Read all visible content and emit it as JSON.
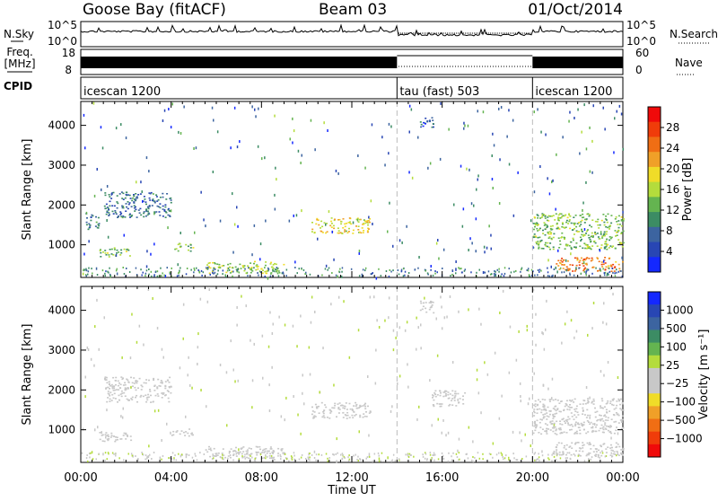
{
  "header": {
    "station": "Goose Bay (fitACF)",
    "beam": "Beam 03",
    "date": "01/Oct/2014"
  },
  "status_panel": {
    "nsky_label": "N.Sky",
    "nsky_top_tick": "10^5",
    "nsky_bottom_tick": "10^0",
    "nsearch_label": "N.Search",
    "nsearch_top_tick": "10^5",
    "nsearch_bottom_tick": "10^0",
    "freq_label_line1": "Freq.",
    "freq_label_line2": "[MHz]",
    "freq_top_tick": "18",
    "freq_bottom_tick": "8",
    "nave_label": "Nave",
    "nave_top_tick": "60",
    "nave_bottom_tick": "0",
    "cpid_label": "CPID",
    "cpid_segments": [
      {
        "label": "icescan 1200",
        "start_hour": 0,
        "end_hour": 14
      },
      {
        "label": "tau (fast) 503",
        "start_hour": 14,
        "end_hour": 20
      },
      {
        "label": "icescan 1200",
        "start_hour": 20,
        "end_hour": 24
      }
    ]
  },
  "chart_data": [
    {
      "type": "heatmap",
      "panel": "power",
      "ylabel": "Slant Range [km]",
      "ylim": [
        180,
        4600
      ],
      "yticks": [
        1000,
        2000,
        3000,
        4000
      ],
      "xlim": [
        0,
        24
      ],
      "colorbar": {
        "label": "Power [dB]",
        "range": [
          0,
          32
        ],
        "ticks": [
          "4",
          "8",
          "12",
          "16",
          "20",
          "24",
          "28"
        ],
        "colors": [
          "#1428ff",
          "#2846b4",
          "#3c64a0",
          "#3c8c64",
          "#64b450",
          "#b4dc3c",
          "#f0dc28",
          "#f0a028",
          "#f06e14",
          "#f03c0a",
          "#f00a0a"
        ]
      },
      "echo_bands": [
        {
          "start_hour": 0.2,
          "end_hour": 0.8,
          "range_low": 1400,
          "range_high": 1800,
          "value": 8
        },
        {
          "start_hour": 0.8,
          "end_hour": 2.2,
          "range_low": 700,
          "range_high": 950,
          "value": 14
        },
        {
          "start_hour": 1.0,
          "end_hour": 4.0,
          "range_low": 1700,
          "range_high": 2350,
          "value": 8
        },
        {
          "start_hour": 4.0,
          "end_hour": 5.0,
          "range_low": 850,
          "range_high": 1050,
          "value": 14
        },
        {
          "start_hour": 5.5,
          "end_hour": 9.0,
          "range_low": 300,
          "range_high": 600,
          "value": 16
        },
        {
          "start_hour": 10.2,
          "end_hour": 12.8,
          "range_low": 1300,
          "range_high": 1700,
          "value": 18
        },
        {
          "start_hour": 15.0,
          "end_hour": 15.6,
          "range_low": 3950,
          "range_high": 4250,
          "value": 6
        },
        {
          "start_hour": 20.0,
          "end_hour": 24.0,
          "range_low": 900,
          "range_high": 1800,
          "value": 14
        },
        {
          "start_hour": 21.0,
          "end_hour": 24.0,
          "range_low": 350,
          "range_high": 700,
          "value": 24
        }
      ]
    },
    {
      "type": "heatmap",
      "panel": "velocity",
      "ylabel": "Slant Range [km]",
      "ylim": [
        180,
        4600
      ],
      "yticks": [
        1000,
        2000,
        3000,
        4000
      ],
      "xlabel": "Time UT",
      "xlim": [
        0,
        24
      ],
      "xticks": [
        "00:00",
        "04:00",
        "08:00",
        "12:00",
        "16:00",
        "20:00",
        "00:00"
      ],
      "colorbar": {
        "label": "Velocity [m s⁻¹]",
        "range": [
          -1200,
          1200
        ],
        "ticks": [
          "1000",
          "500",
          "100",
          "25",
          "−25",
          "−100",
          "−500",
          "−1000"
        ],
        "colors": [
          "#1428ff",
          "#2846b4",
          "#3c64a0",
          "#3c8c64",
          "#64b450",
          "#b4dc3c",
          "#c8c8c8",
          "#c8c8c8",
          "#f0dc28",
          "#f0a028",
          "#f06e14",
          "#f03c0a",
          "#f00a0a"
        ]
      },
      "echo_bands": [
        {
          "start_hour": 0.8,
          "end_hour": 2.2,
          "range_low": 700,
          "range_high": 950,
          "value": 0
        },
        {
          "start_hour": 1.0,
          "end_hour": 4.0,
          "range_low": 1700,
          "range_high": 2350,
          "value": 0
        },
        {
          "start_hour": 4.0,
          "end_hour": 5.0,
          "range_low": 850,
          "range_high": 1050,
          "value": 0
        },
        {
          "start_hour": 5.5,
          "end_hour": 9.0,
          "range_low": 300,
          "range_high": 600,
          "value": -150
        },
        {
          "start_hour": 10.2,
          "end_hour": 12.8,
          "range_low": 1300,
          "range_high": 1700,
          "value": 0
        },
        {
          "start_hour": 15.0,
          "end_hour": 15.6,
          "range_low": 3950,
          "range_high": 4250,
          "value": -200
        },
        {
          "start_hour": 15.5,
          "end_hour": 17.0,
          "range_low": 1600,
          "range_high": 2000,
          "value": -150
        },
        {
          "start_hour": 20.0,
          "end_hour": 24.0,
          "range_low": 900,
          "range_high": 1800,
          "value": 0
        },
        {
          "start_hour": 21.0,
          "end_hour": 24.0,
          "range_low": 350,
          "range_high": 700,
          "value": -200
        }
      ]
    }
  ]
}
